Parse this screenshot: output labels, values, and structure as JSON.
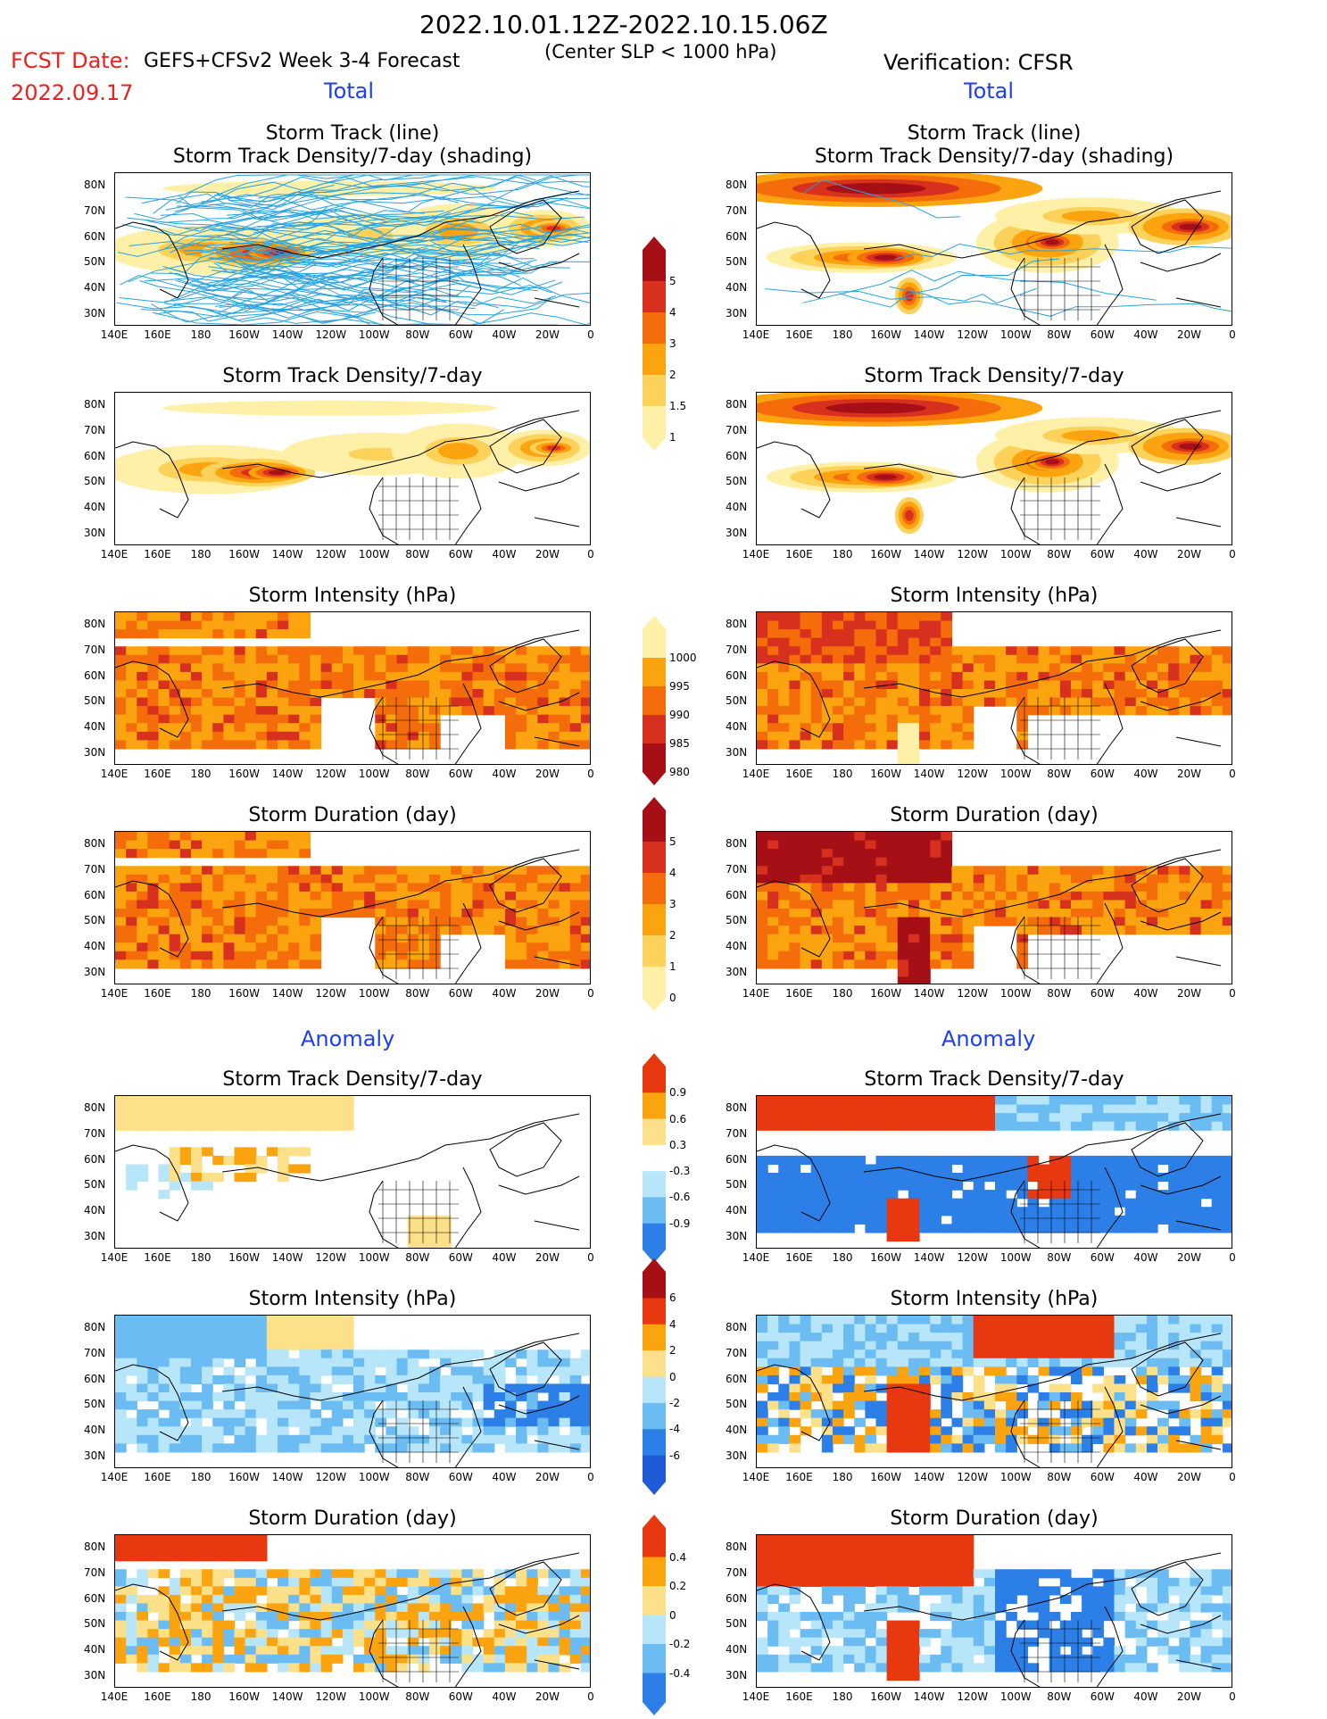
{
  "header": {
    "date_range": "2022.10.01.12Z-2022.10.15.06Z",
    "fcst_label": "FCST Date:",
    "fcst_date": "2022.09.17",
    "left_model": "GEFS+CFSv2 Week 3-4 Forecast",
    "criterion": "(Center SLP < 1000 hPa)",
    "verification": "Verification: CFSR",
    "total_left": "Total",
    "total_right": "Total",
    "anomaly_left": "Anomaly",
    "anomaly_right": "Anomaly"
  },
  "panel_titles": {
    "track_line": "Storm Track (line)",
    "track_density_shading": "Storm Track Density/7-day (shading)",
    "track_density": "Storm Track Density/7-day",
    "intensity": "Storm Intensity (hPa)",
    "duration": "Storm Duration (day)"
  },
  "axes": {
    "lon_ticks": [
      "140E",
      "160E",
      "180",
      "160W",
      "140W",
      "120W",
      "100W",
      "80W",
      "60W",
      "40W",
      "20W",
      "0"
    ],
    "lat_ticks": [
      "80N",
      "70N",
      "60N",
      "50N",
      "40N",
      "30N"
    ]
  },
  "colorbars": {
    "density": {
      "labels": [
        "5",
        "4",
        "3",
        "2",
        "1.5",
        "1"
      ],
      "colors": [
        "#a50f15",
        "#d7301f",
        "#f46d0a",
        "#fca40f",
        "#fdd25a",
        "#fff0a8"
      ]
    },
    "intensity": {
      "labels": [
        "1000",
        "995",
        "990",
        "985",
        "980"
      ],
      "colors": [
        "#fff0a8",
        "#fca40f",
        "#f46d0a",
        "#d7301f",
        "#a50f15"
      ]
    },
    "duration": {
      "labels": [
        "5",
        "4",
        "3",
        "2",
        "1",
        "0"
      ],
      "colors": [
        "#a50f15",
        "#d7301f",
        "#f46d0a",
        "#fca40f",
        "#fdd25a",
        "#fff0a8"
      ]
    },
    "anom_density": {
      "labels": [
        "0.9",
        "0.6",
        "0.3",
        "-0.3",
        "-0.6",
        "-0.9"
      ],
      "colors": [
        "#e8380f",
        "#fca40f",
        "#fde08a",
        "#ffffff",
        "#b7e6fa",
        "#6bbcf2",
        "#2b7fe6"
      ]
    },
    "anom_intensity": {
      "labels": [
        "6",
        "4",
        "2",
        "0",
        "-2",
        "-4",
        "-6"
      ],
      "colors": [
        "#a50f15",
        "#e8380f",
        "#fca40f",
        "#fde08a",
        "#b7e6fa",
        "#6bbcf2",
        "#2b7fe6",
        "#1f5bd6"
      ]
    },
    "anom_duration": {
      "labels": [
        "0.4",
        "0.2",
        "0",
        "-0.2",
        "-0.4"
      ],
      "colors": [
        "#e8380f",
        "#fca40f",
        "#fde08a",
        "#b7e6fa",
        "#6bbcf2",
        "#2b7fe6"
      ]
    }
  }
}
